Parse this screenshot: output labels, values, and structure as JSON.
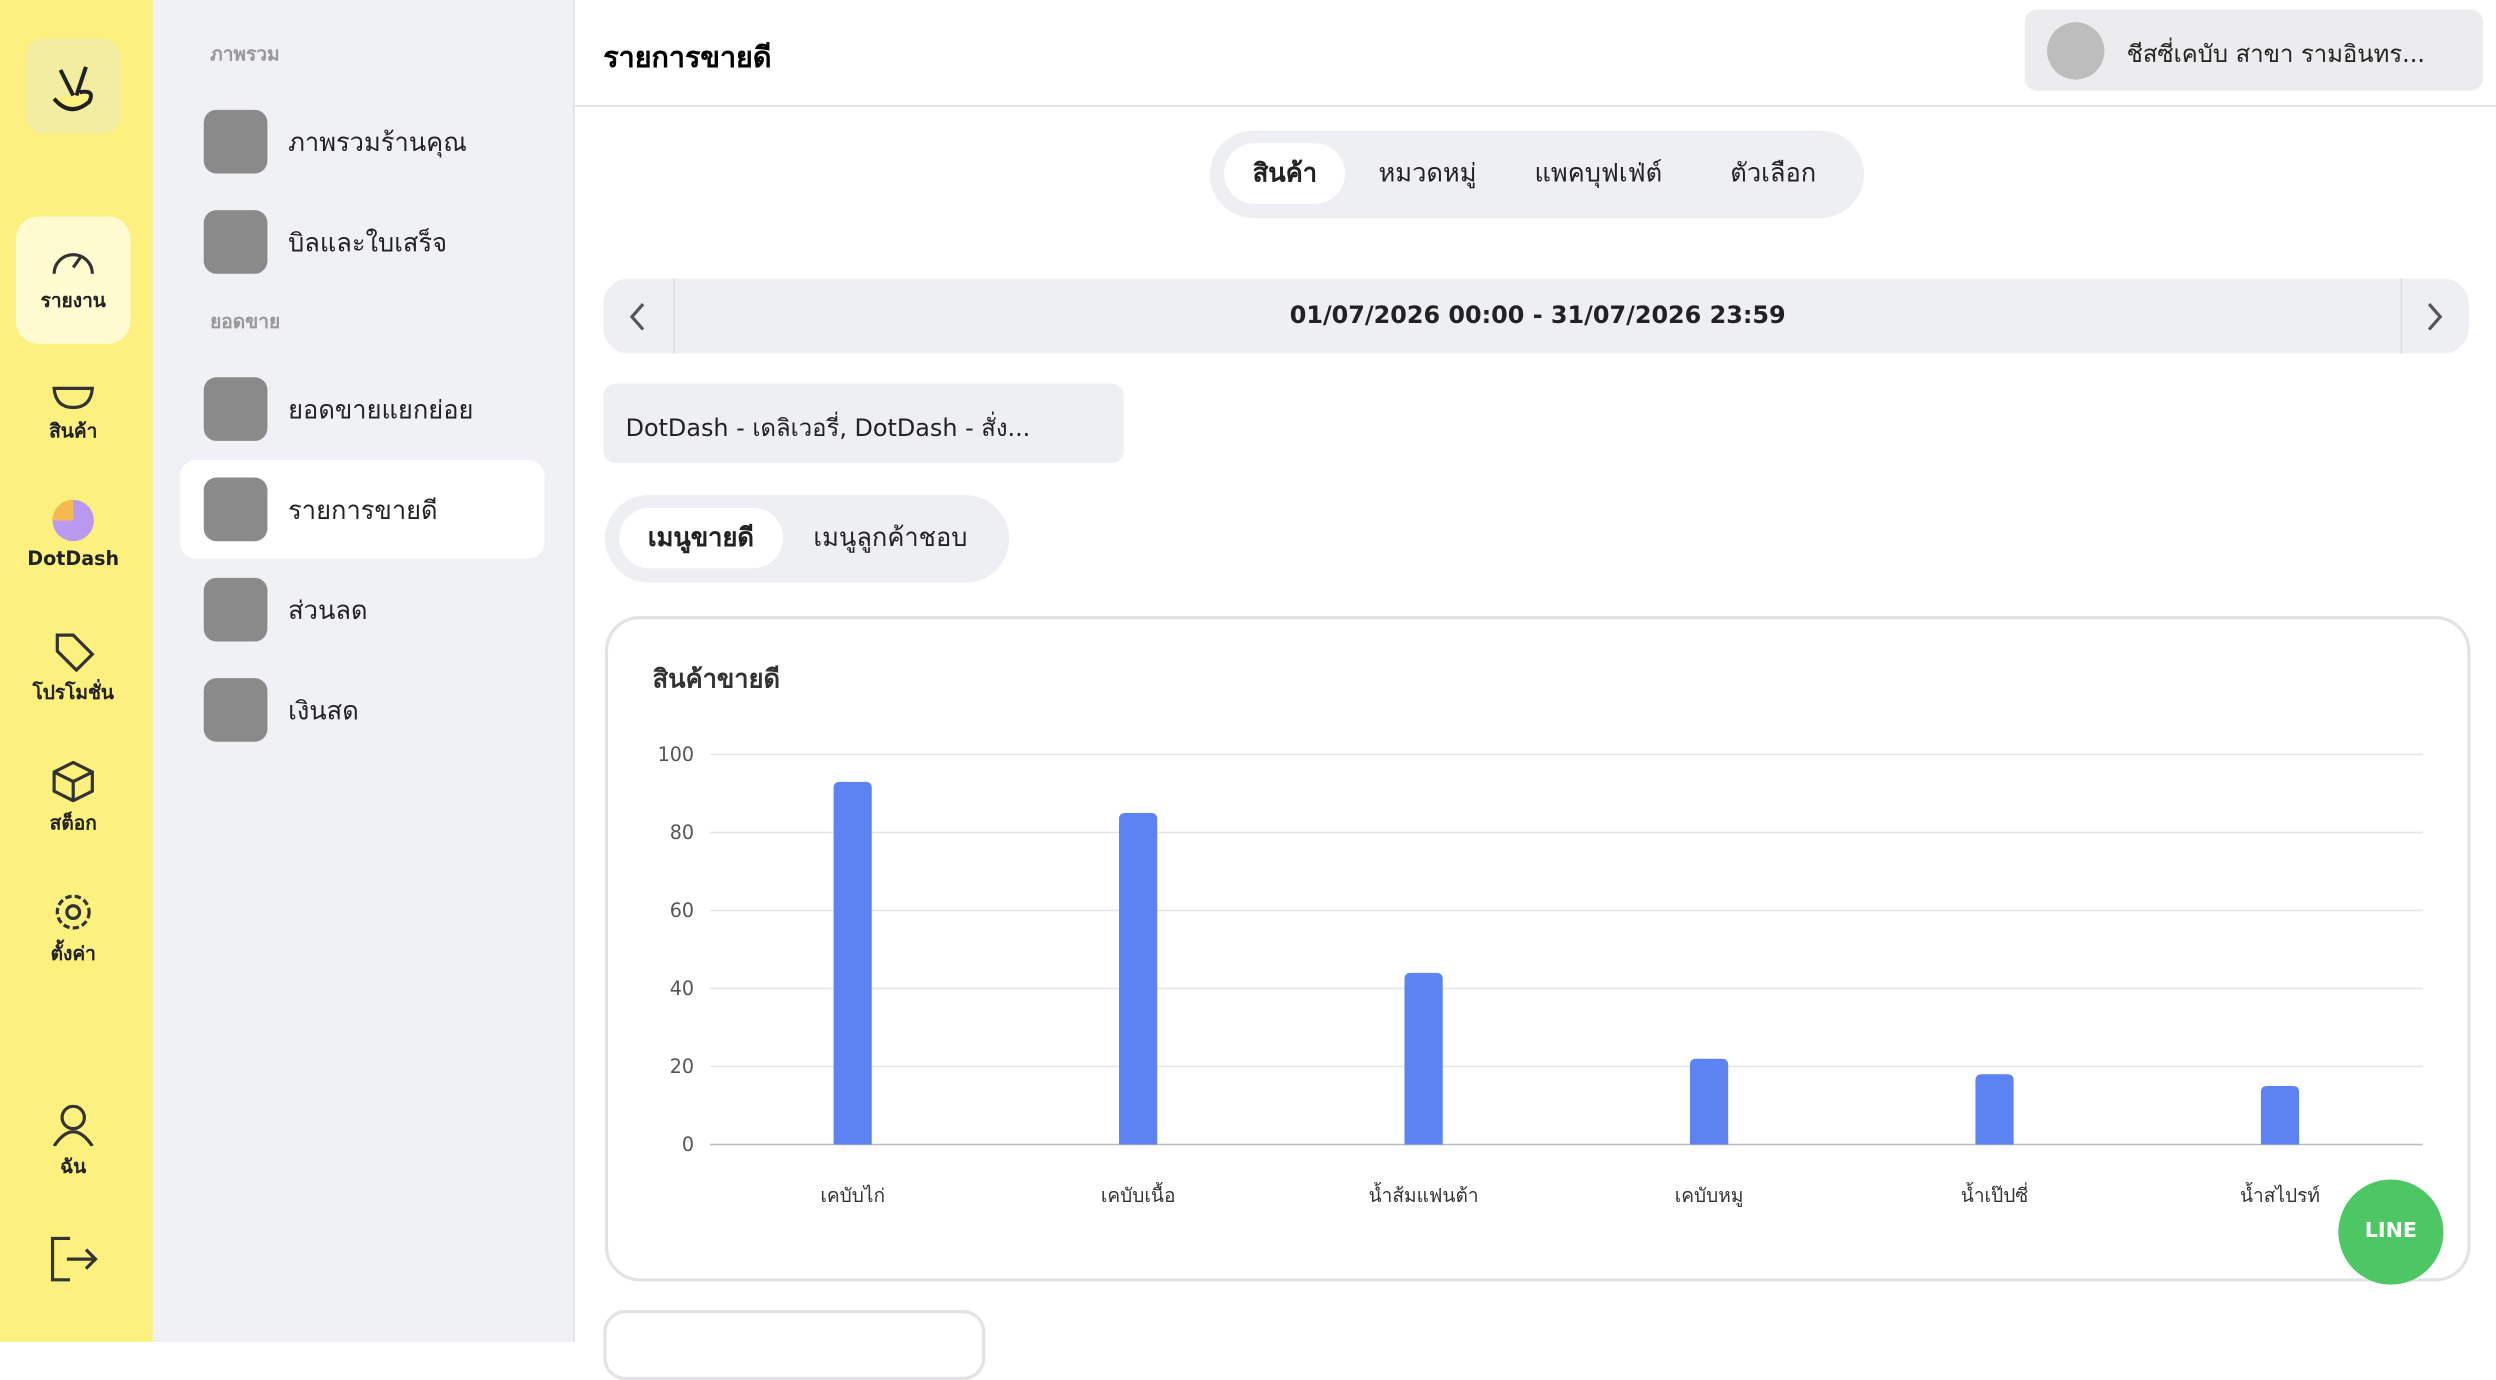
{
  "sidebar": {
    "items": [
      "รายงาน",
      "สินค้า",
      "DotDash",
      "โปรโมชั่น",
      "สต็อก",
      "ตั้งค่า"
    ],
    "bottom": [
      "ฉัน"
    ]
  },
  "menu": {
    "sections": [
      {
        "title": "ภาพรวม",
        "items": [
          "ภาพรวมร้านคุณ",
          "บิลและใบเสร็จ"
        ]
      },
      {
        "title": "ยอดขาย",
        "items": [
          "ยอดขายแยกย่อย",
          "รายการขายดี",
          "ส่วนลด",
          "เงินสด"
        ]
      }
    ]
  },
  "header": {
    "title": "รายการขายดี",
    "branch": "ชีสซี่เคบับ สาขา รามอินทร..."
  },
  "tabs": [
    "สินค้า",
    "หมวดหมู่",
    "แพคบุฟเฟ่ต์",
    "ตัวเลือก"
  ],
  "date_range": "01/07/2026 00:00 - 31/07/2026 23:59",
  "channel_filter": "DotDash - เดลิเวอรี่, DotDash - สั่ง...",
  "subtabs": [
    "เมนูขายดี",
    "เมนูลูกค้าชอบ"
  ],
  "chart_data": {
    "type": "bar",
    "title": "สินค้าขายดี",
    "categories": [
      "เคบับไก่",
      "เคบับเนื้อ",
      "น้ำส้มแฟนต้า",
      "เคบับหมู",
      "น้ำเป๊ปซี่",
      "น้ำสไปรท์"
    ],
    "values": [
      93,
      85,
      44,
      22,
      18,
      15
    ],
    "color": "#5b83f1",
    "ylim": [
      0,
      100
    ],
    "yticks": [
      0,
      20,
      40,
      60,
      80,
      100
    ],
    "grid": true
  },
  "line_button": "LINE"
}
